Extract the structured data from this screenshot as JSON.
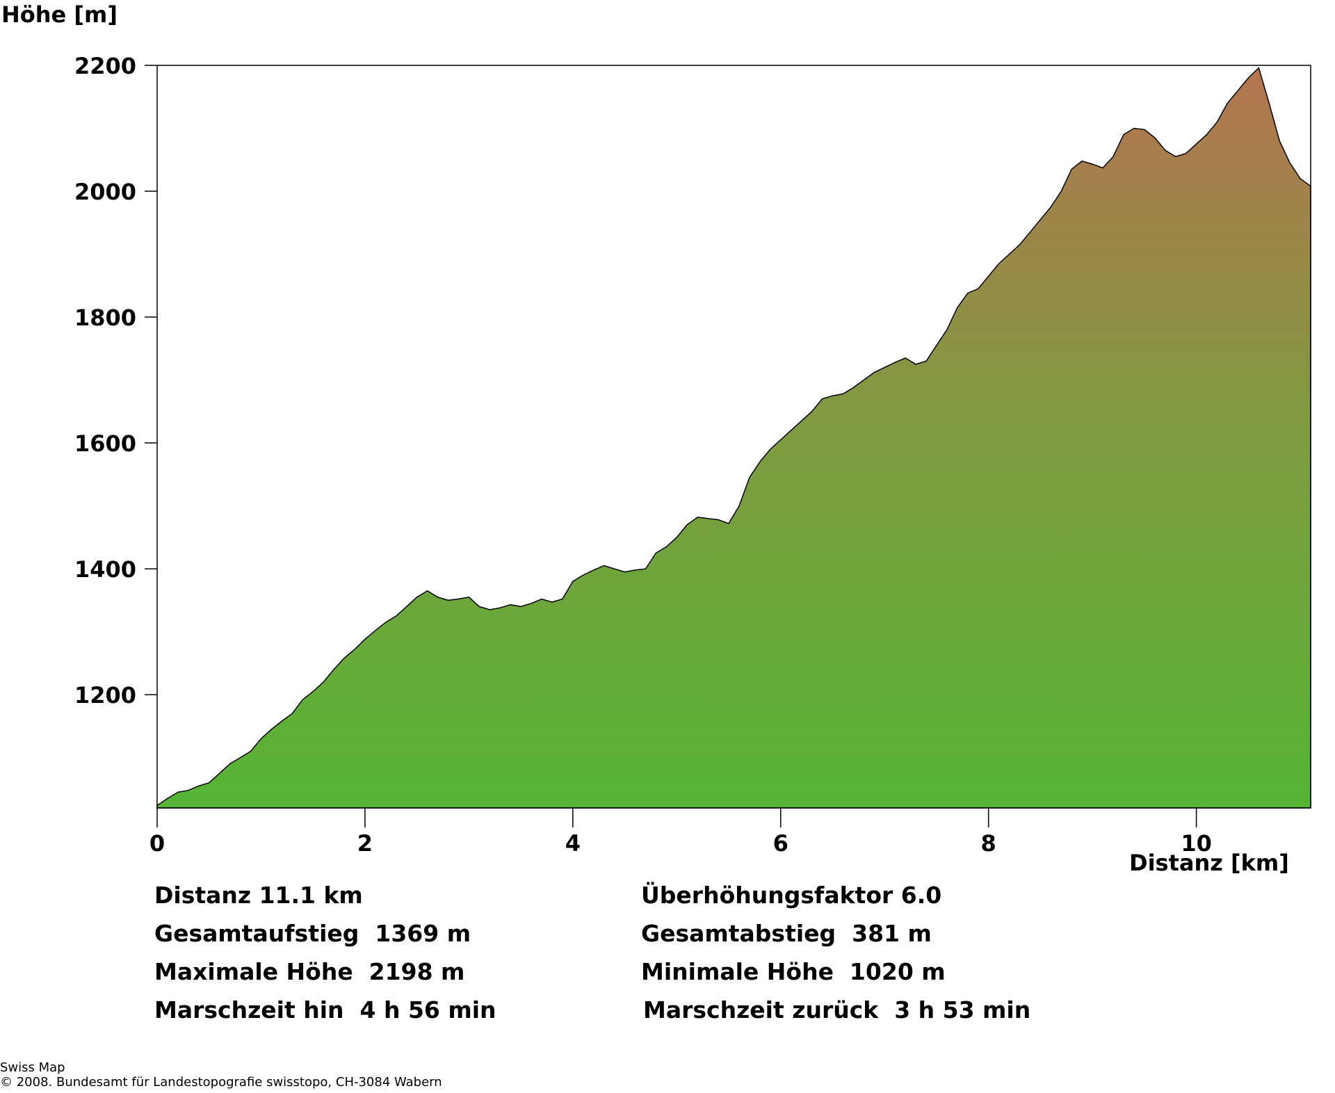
{
  "chart_data": {
    "type": "area",
    "ylabel": "Höhe [m]",
    "xlabel": "Distanz [km]",
    "xlim": [
      0,
      11.1
    ],
    "ylim": [
      1020,
      2200
    ],
    "xticks": [
      0,
      2,
      4,
      6,
      8,
      10
    ],
    "yticks": [
      1200,
      1400,
      1600,
      1800,
      2000,
      2200
    ],
    "grid": false,
    "colors": {
      "low": "#55b534",
      "high": "#b4754f",
      "outline": "#000000"
    },
    "x": [
      0,
      0.1,
      0.2,
      0.3,
      0.4,
      0.5,
      0.6,
      0.7,
      0.8,
      0.9,
      1.0,
      1.1,
      1.2,
      1.3,
      1.4,
      1.5,
      1.6,
      1.7,
      1.8,
      1.9,
      2.0,
      2.1,
      2.2,
      2.3,
      2.4,
      2.5,
      2.6,
      2.7,
      2.8,
      2.9,
      3.0,
      3.1,
      3.2,
      3.3,
      3.4,
      3.5,
      3.6,
      3.7,
      3.8,
      3.9,
      4.0,
      4.1,
      4.2,
      4.3,
      4.4,
      4.5,
      4.6,
      4.7,
      4.8,
      4.9,
      5.0,
      5.1,
      5.2,
      5.3,
      5.4,
      5.5,
      5.6,
      5.7,
      5.8,
      5.9,
      6.0,
      6.1,
      6.2,
      6.3,
      6.4,
      6.5,
      6.6,
      6.7,
      6.8,
      6.9,
      7.0,
      7.1,
      7.2,
      7.3,
      7.4,
      7.5,
      7.6,
      7.7,
      7.8,
      7.9,
      8.0,
      8.1,
      8.2,
      8.3,
      8.4,
      8.5,
      8.6,
      8.7,
      8.8,
      8.9,
      9.0,
      9.1,
      9.2,
      9.3,
      9.4,
      9.5,
      9.6,
      9.7,
      9.8,
      9.9,
      10.0,
      10.1,
      10.2,
      10.3,
      10.4,
      10.5,
      10.6,
      10.7,
      10.8,
      10.9,
      11.0,
      11.1
    ],
    "y": [
      1024,
      1035,
      1045,
      1048,
      1055,
      1060,
      1075,
      1090,
      1100,
      1110,
      1130,
      1145,
      1158,
      1170,
      1192,
      1205,
      1220,
      1240,
      1258,
      1272,
      1288,
      1302,
      1315,
      1325,
      1340,
      1355,
      1365,
      1355,
      1350,
      1352,
      1355,
      1340,
      1335,
      1338,
      1343,
      1340,
      1345,
      1352,
      1347,
      1352,
      1380,
      1390,
      1398,
      1405,
      1400,
      1395,
      1398,
      1400,
      1425,
      1435,
      1450,
      1470,
      1482,
      1480,
      1478,
      1472,
      1500,
      1545,
      1570,
      1590,
      1605,
      1620,
      1635,
      1650,
      1670,
      1675,
      1678,
      1688,
      1700,
      1712,
      1720,
      1728,
      1735,
      1725,
      1730,
      1755,
      1780,
      1815,
      1838,
      1845,
      1865,
      1885,
      1900,
      1915,
      1935,
      1955,
      1975,
      2000,
      2035,
      2048,
      2043,
      2037,
      2055,
      2090,
      2100,
      2098,
      2085,
      2065,
      2055,
      2060,
      2075,
      2090,
      2110,
      2140,
      2160,
      2180,
      2196,
      2140,
      2080,
      2045,
      2020,
      2008
    ]
  },
  "stats": {
    "distance": "Distanz 11.1 km",
    "exaggeration": "Überhöhungsfaktor 6.0",
    "ascent": "Gesamtaufstieg  1369 m",
    "descent": "Gesamtabstieg  381 m",
    "max_height": "Maximale Höhe  2198 m",
    "min_height": "Minimale Höhe  1020 m",
    "time_there": "Marschzeit hin  4 h 56 min",
    "time_back": "Marschzeit zurück  3 h 53 min"
  },
  "footer": {
    "line1": "Swiss Map",
    "line2": "© 2008. Bundesamt für Landestopografie swisstopo, CH-3084 Wabern"
  }
}
